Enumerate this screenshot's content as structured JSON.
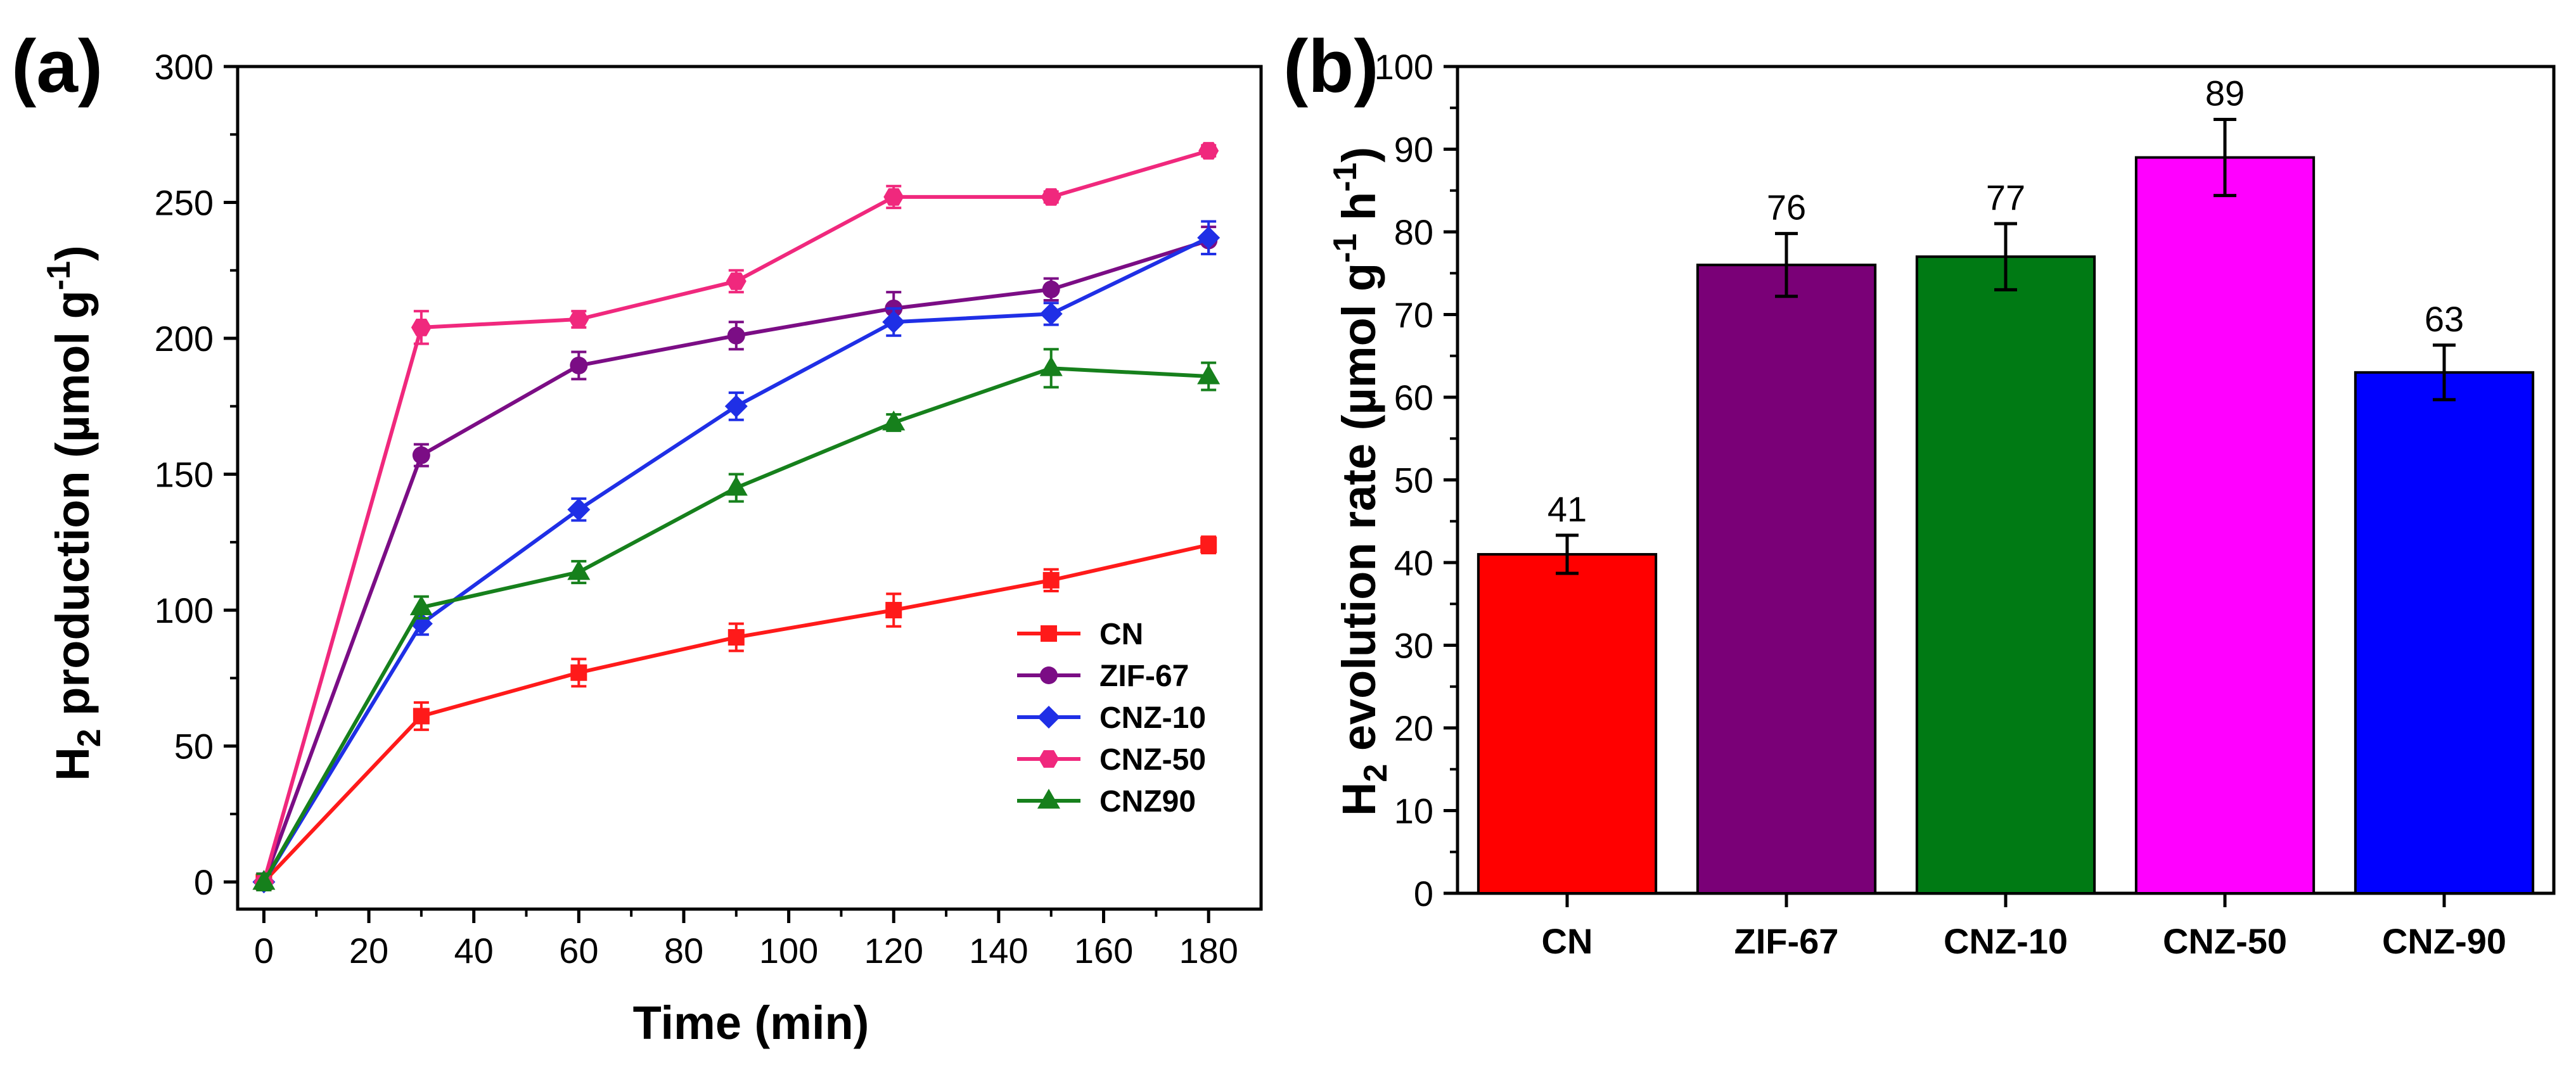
{
  "colors": {
    "CN": "#ff1a1a",
    "ZIF-67": "#7b0d85",
    "CNZ-10": "#1f2fe6",
    "CNZ-50": "#f0287d",
    "CNZ90": "#16801c",
    "bar_CN": "#ff0000",
    "bar_ZIF-67": "#7a0077",
    "bar_CNZ-10": "#007a14",
    "bar_CNZ-50": "#ff00ff",
    "bar_CNZ-90": "#0000ff"
  },
  "chart_data": [
    {
      "panel_label": "(a)",
      "type": "line",
      "title": "",
      "xlabel": "Time (min)",
      "ylabel_main": "H",
      "ylabel_sub": "2",
      "ylabel_rest": " production (µmol g",
      "ylabel_sup": "-1",
      "ylabel_end": ")",
      "xlim": [
        -5,
        190
      ],
      "ylim": [
        -10,
        300
      ],
      "xticks": [
        0,
        20,
        40,
        60,
        80,
        100,
        120,
        140,
        160,
        180
      ],
      "yticks": [
        0,
        50,
        100,
        150,
        200,
        250,
        300
      ],
      "x": [
        0,
        30,
        60,
        90,
        120,
        150,
        180
      ],
      "legend_position": "bottom-right",
      "series": [
        {
          "name": "CN",
          "marker": "square",
          "values": [
            0,
            61,
            77,
            90,
            100,
            111,
            124
          ],
          "errors": [
            3,
            5,
            5,
            5,
            6,
            4,
            3
          ]
        },
        {
          "name": "ZIF-67",
          "marker": "circle",
          "values": [
            0,
            157,
            190,
            201,
            211,
            218,
            236
          ],
          "errors": [
            3,
            4,
            5,
            5,
            6,
            4,
            5
          ]
        },
        {
          "name": "CNZ-10",
          "marker": "diamond",
          "values": [
            0,
            95,
            137,
            175,
            206,
            209,
            237
          ],
          "errors": [
            3,
            4,
            4,
            5,
            5,
            4,
            6
          ]
        },
        {
          "name": "CNZ-50",
          "marker": "hexagon",
          "values": [
            0,
            204,
            207,
            221,
            252,
            252,
            269
          ],
          "errors": [
            3,
            6,
            3,
            4,
            4,
            2,
            2
          ]
        },
        {
          "name": "CNZ90",
          "marker": "triangle",
          "values": [
            0,
            101,
            114,
            145,
            169,
            189,
            186
          ],
          "errors": [
            3,
            4,
            4,
            5,
            3,
            7,
            5
          ]
        }
      ]
    },
    {
      "panel_label": "(b)",
      "type": "bar",
      "title": "",
      "xlabel": "",
      "ylabel_main": "H",
      "ylabel_sub": "2",
      "ylabel_rest": " evolution rate (µmol g",
      "ylabel_sup": "-1",
      "ylabel_mid": " h",
      "ylabel_sup2": "-1",
      "ylabel_end": ")",
      "ylim": [
        0,
        100
      ],
      "yticks": [
        0,
        10,
        20,
        30,
        40,
        50,
        60,
        70,
        80,
        90,
        100
      ],
      "categories": [
        "CN",
        "ZIF-67",
        "CNZ-10",
        "CNZ-50",
        "CNZ-90"
      ],
      "values": [
        41,
        76,
        77,
        89,
        63
      ],
      "value_labels": [
        "41",
        "76",
        "77",
        "89",
        "63"
      ],
      "errors": [
        2.3,
        3.8,
        4.0,
        4.6,
        3.3
      ]
    }
  ]
}
